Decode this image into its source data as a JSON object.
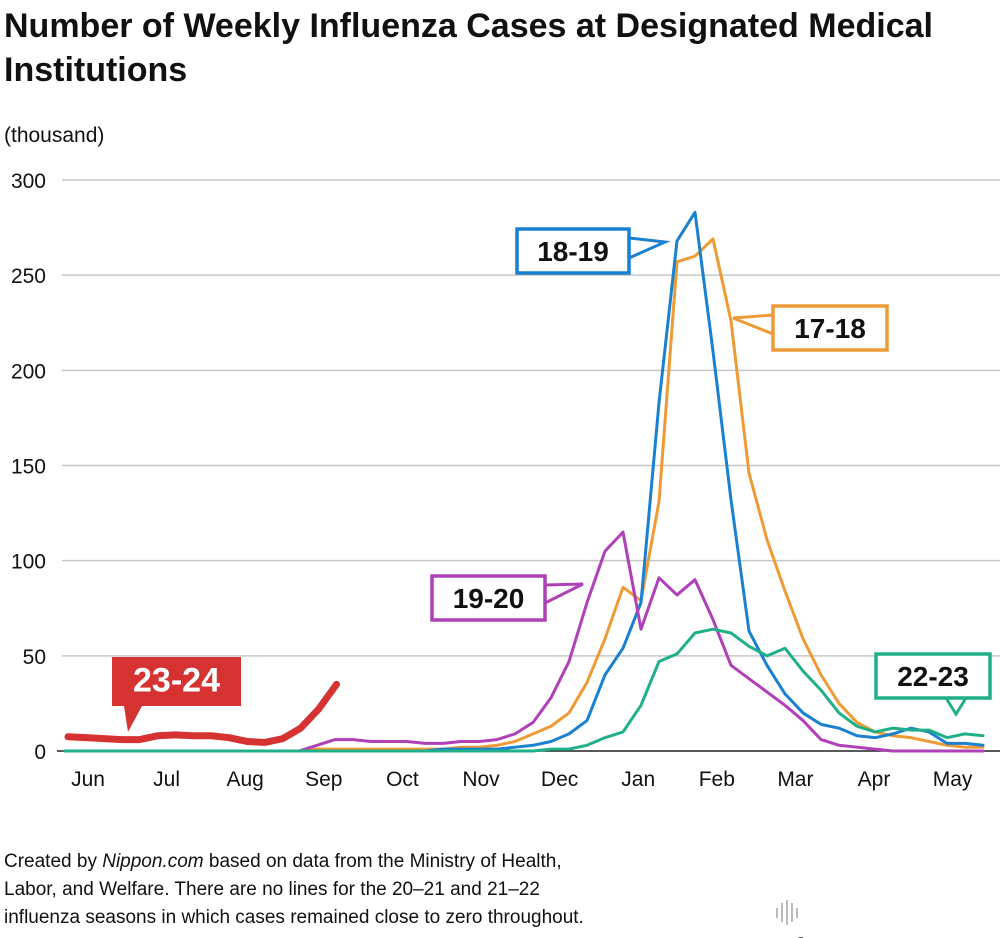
{
  "chart_data": {
    "type": "line",
    "title": "Number of Weekly Influenza Cases at Designated Medical Institutions",
    "ylabel": "(thousand)",
    "xlabel": "",
    "ylim": [
      0,
      300
    ],
    "yticks": [
      0,
      50,
      100,
      150,
      200,
      250,
      300
    ],
    "x_tick_labels": [
      "Jun",
      "Jul",
      "Aug",
      "Sep",
      "Oct",
      "Nov",
      "Dec",
      "Jan",
      "Feb",
      "Mar",
      "Apr",
      "May"
    ],
    "x_frequency": "weekly",
    "grid": true,
    "legend": "inline labels",
    "series": [
      {
        "name": "17-18",
        "color": "#ee9b35",
        "values": [
          0,
          0,
          0,
          0,
          0,
          0,
          0,
          0,
          0,
          0,
          0,
          0,
          0,
          0,
          1,
          1,
          1,
          1,
          1,
          1,
          1,
          1,
          2,
          2,
          3,
          5,
          9,
          13,
          20,
          36,
          59,
          86,
          79,
          131,
          257,
          260,
          269,
          226,
          146,
          111,
          84,
          59,
          40,
          25,
          15,
          10,
          8,
          7,
          5,
          3,
          2,
          2
        ]
      },
      {
        "name": "18-19",
        "color": "#1a80d0",
        "values": [
          0,
          0,
          0,
          0,
          0,
          0,
          0,
          0,
          0,
          0,
          0,
          0,
          0,
          0,
          0,
          0,
          0,
          0,
          0,
          0,
          0,
          1,
          1,
          1,
          1,
          2,
          3,
          5,
          9,
          16,
          40,
          54,
          78,
          183,
          268,
          283,
          210,
          132,
          63,
          45,
          30,
          20,
          14,
          12,
          8,
          7,
          9,
          12,
          10,
          4,
          4,
          3
        ]
      },
      {
        "name": "19-20",
        "color": "#b040b8",
        "values": [
          0,
          0,
          0,
          0,
          0,
          0,
          0,
          0,
          0,
          0,
          0,
          0,
          0,
          0,
          3,
          6,
          6,
          5,
          5,
          5,
          4,
          4,
          5,
          5,
          6,
          9,
          15,
          28,
          47,
          78,
          105,
          115,
          64,
          91,
          82,
          90,
          69,
          45,
          38,
          31,
          24,
          16,
          6,
          3,
          2,
          1,
          0,
          0,
          0,
          0,
          0,
          0
        ]
      },
      {
        "name": "22-23",
        "color": "#1fb08a",
        "values": [
          0,
          0,
          0,
          0,
          0,
          0,
          0,
          0,
          0,
          0,
          0,
          0,
          0,
          0,
          0,
          0,
          0,
          0,
          0,
          0,
          0,
          0,
          0,
          0,
          0,
          0,
          0,
          1,
          1,
          3,
          7,
          10,
          24,
          47,
          51,
          62,
          64,
          62,
          55,
          50,
          54,
          42,
          32,
          20,
          13,
          10,
          12,
          11,
          11,
          7,
          9,
          8
        ]
      },
      {
        "name": "23-24",
        "color": "#d63232",
        "values": [
          7.5,
          7,
          6.5,
          6,
          6,
          8,
          8.5,
          8,
          8,
          7,
          5,
          4.5,
          6.5,
          12,
          22,
          35
        ]
      }
    ]
  },
  "footer": {
    "line1_a": "Created by ",
    "line1_b": "Nippon.com",
    "line1_c": " based on data from the Ministry of Health,",
    "line2": "Labor, and Welfare. There are no lines for the 20–21 and 21–22",
    "line3": "influenza seasons in which cases remained close to zero throughout."
  },
  "logo": {
    "text_a": "nippon",
    "text_dot": ".",
    "text_b": "com"
  }
}
